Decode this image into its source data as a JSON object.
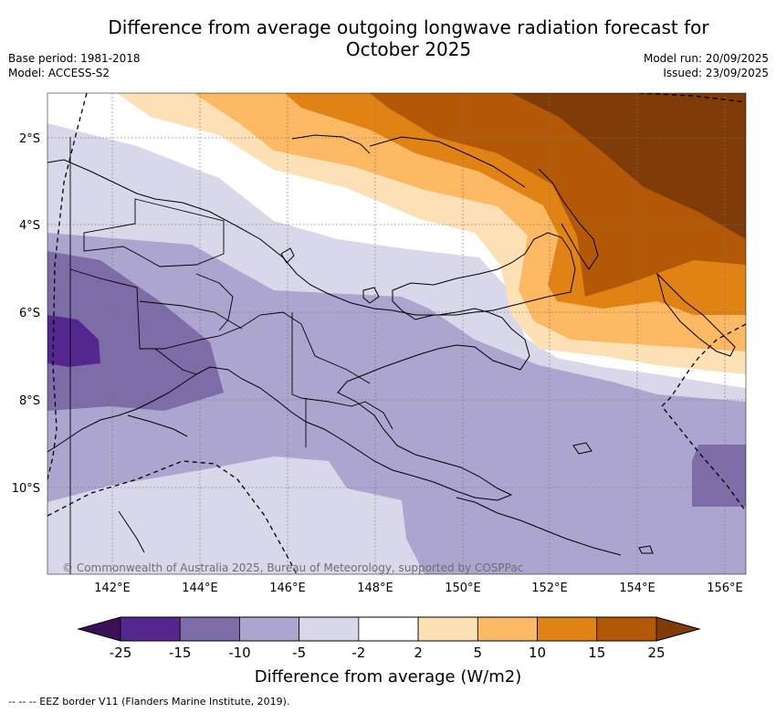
{
  "title_line1": "Difference from average outgoing longwave radiation forecast for",
  "title_line2": "October 2025",
  "meta": {
    "base_period": "Base period: 1981-2018",
    "model": "Model: ACCESS-S2",
    "model_run": "Model run: 20/09/2025",
    "issued": "Issued: 23/09/2025"
  },
  "axes": {
    "lat_labels": [
      "2°S",
      "4°S",
      "6°S",
      "8°S",
      "10°S"
    ],
    "lon_labels": [
      "142°E",
      "144°E",
      "146°E",
      "148°E",
      "150°E",
      "152°E",
      "154°E",
      "156°E"
    ]
  },
  "copyright": "© Commonwealth of Australia 2025, Bureau of Meteorology, supported by COSPPac",
  "colorbar": {
    "title": "Difference from average (W/m2)",
    "labels": [
      "-25",
      "-15",
      "-10",
      "-5",
      "-2",
      "2",
      "5",
      "10",
      "15",
      "25"
    ],
    "colors": [
      "#3b1058",
      "#54278f",
      "#7d6ca8",
      "#aca5cf",
      "#d9d8ea",
      "#ffffff",
      "#fee0b6",
      "#fdb863",
      "#e08214",
      "#b35806",
      "#7f3b08"
    ]
  },
  "footnote": "-- -- -- EEZ border V11 (Flanders Marine Institute, 2019)."
}
